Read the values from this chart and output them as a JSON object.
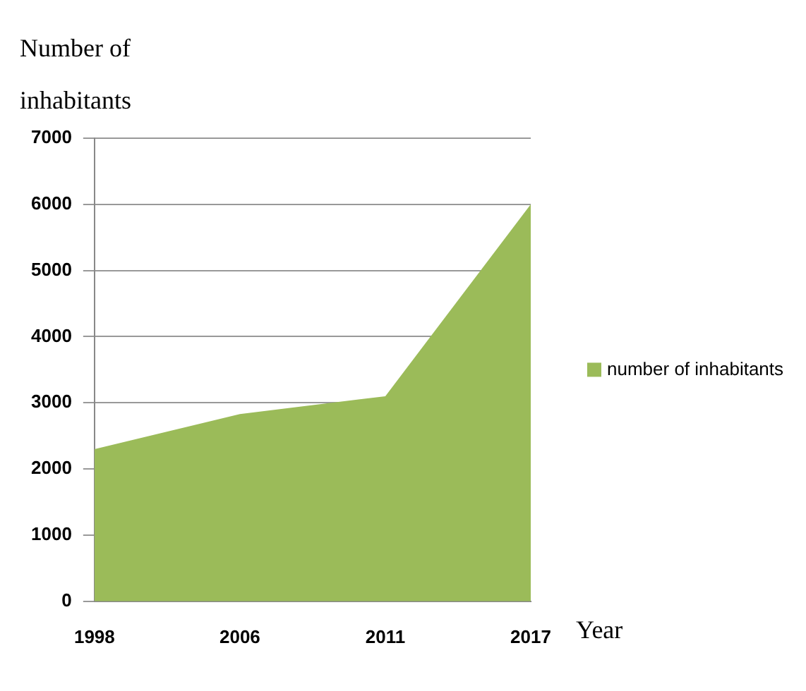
{
  "chart_data": {
    "type": "area",
    "xlabel": "Year",
    "ylabel": "Number of inhabitants",
    "categories": [
      "1998",
      "2006",
      "2011",
      "2017"
    ],
    "series": [
      {
        "name": "number of inhabitants",
        "color": "#9bbb59",
        "values": [
          2300,
          2830,
          3100,
          6000
        ]
      }
    ],
    "ylim": [
      0,
      7000
    ],
    "yticks": [
      0,
      1000,
      2000,
      3000,
      4000,
      5000,
      6000,
      7000
    ],
    "grid": "y",
    "legend": "right"
  }
}
